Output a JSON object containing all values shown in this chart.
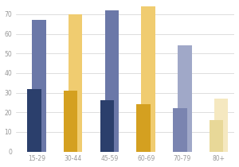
{
  "categories": [
    "15-29",
    "30-44",
    "45-59",
    "60-69",
    "70-79",
    "80+"
  ],
  "current_vals": [
    32,
    31,
    26,
    24,
    22,
    16
  ],
  "potential_vals": [
    67,
    70,
    72,
    74,
    54,
    27
  ],
  "current_colors": [
    "#2b3f6c",
    "#d4a020",
    "#2b3f6c",
    "#d4a020",
    "#7a84b0",
    "#e8d898"
  ],
  "potential_colors": [
    "#6b78a8",
    "#f0cc70",
    "#6b78a8",
    "#f0cc70",
    "#a0a8c8",
    "#f5e8c0"
  ],
  "ylim": [
    0,
    75
  ],
  "yticks": [
    0,
    10,
    20,
    30,
    40,
    50,
    60,
    70
  ],
  "background_color": "#ffffff",
  "grid_color": "#d0d0d0"
}
